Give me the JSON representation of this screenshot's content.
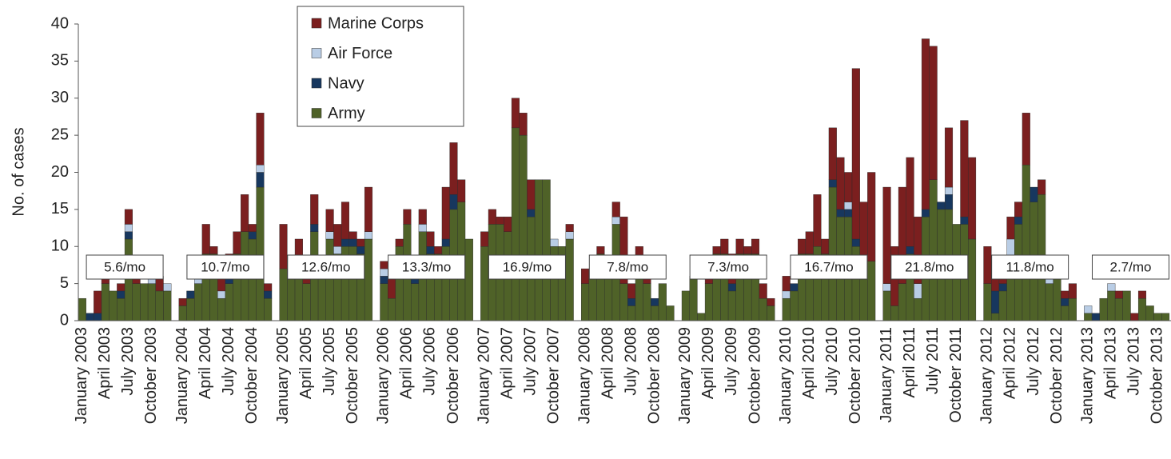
{
  "chart_data": {
    "type": "stacked-bar",
    "y_label": "No. of cases",
    "ylim": [
      0,
      40
    ],
    "yticks": [
      0,
      5,
      10,
      15,
      20,
      25,
      30,
      35,
      40
    ],
    "categories": [
      "January 2003",
      null,
      null,
      "April 2003",
      null,
      null,
      "July 2003",
      null,
      null,
      "October 2003",
      null,
      null,
      "January 2004",
      null,
      null,
      "April 2004",
      null,
      null,
      "July 2004",
      null,
      null,
      "October 2004",
      null,
      null,
      "January 2005",
      null,
      null,
      "April 2005",
      null,
      null,
      "July 2005",
      null,
      null,
      "October 2005",
      null,
      null,
      "January 2006",
      null,
      null,
      "April 2006",
      null,
      null,
      "July 2006",
      null,
      null,
      "October 2006",
      null,
      null,
      "January 2007",
      null,
      null,
      "April 2007",
      null,
      null,
      "July 2007",
      null,
      null,
      "October 2007",
      null,
      null,
      "January 2008",
      null,
      null,
      "April 2008",
      null,
      null,
      "July 2008",
      null,
      null,
      "October 2008",
      null,
      null,
      "January 2009",
      null,
      null,
      "April 2009",
      null,
      null,
      "July 2009",
      null,
      null,
      "October 2009",
      null,
      null,
      "January 2010",
      null,
      null,
      "April 2010",
      null,
      null,
      "July 2010",
      null,
      null,
      "October 2010",
      null,
      null,
      "January 2011",
      null,
      null,
      "April 2011",
      null,
      null,
      "July 2011",
      null,
      null,
      "October 2011",
      null,
      null,
      "January 2012",
      null,
      null,
      "April 2012",
      null,
      null,
      "July 2012",
      null,
      null,
      "October 2012",
      null,
      null,
      "January 2013",
      null,
      null,
      "April 2013",
      null,
      null,
      "July 2013",
      null,
      null,
      "October 2013",
      null,
      null
    ],
    "series": [
      {
        "name": "Army",
        "color": "#4f6228",
        "values": [
          3,
          0,
          0,
          5,
          4,
          3,
          11,
          5,
          5,
          5,
          4,
          4,
          2,
          3,
          5,
          9,
          9,
          3,
          5,
          9,
          12,
          11,
          18,
          3,
          7,
          7,
          6,
          5,
          12,
          7,
          11,
          9,
          10,
          10,
          9,
          11,
          5,
          3,
          10,
          13,
          5,
          12,
          9,
          9,
          10,
          15,
          16,
          11,
          10,
          13,
          13,
          12,
          26,
          25,
          14,
          19,
          19,
          10,
          10,
          11,
          5,
          6,
          9,
          6,
          13,
          5,
          2,
          6,
          5,
          2,
          5,
          2,
          4,
          6,
          1,
          5,
          9,
          9,
          4,
          9,
          9,
          9,
          3,
          2,
          3,
          4,
          9,
          9,
          10,
          9,
          18,
          14,
          14,
          10,
          8,
          8,
          4,
          2,
          5,
          9,
          3,
          14,
          19,
          15,
          15,
          13,
          13,
          11,
          5,
          1,
          4,
          8,
          13,
          21,
          16,
          17,
          5,
          6,
          2,
          3,
          1,
          0,
          3,
          4,
          3,
          4,
          0,
          3,
          2,
          1,
          1,
          0
        ]
      },
      {
        "name": "Navy",
        "color": "#17375e",
        "values": [
          0,
          1,
          1,
          0,
          0,
          1,
          1,
          0,
          0,
          0,
          0,
          0,
          0,
          1,
          0,
          0,
          0,
          0,
          1,
          0,
          0,
          1,
          2,
          1,
          0,
          0,
          0,
          0,
          1,
          0,
          0,
          0,
          1,
          1,
          1,
          0,
          1,
          0,
          0,
          0,
          1,
          0,
          1,
          0,
          1,
          2,
          0,
          0,
          0,
          0,
          0,
          0,
          0,
          0,
          1,
          0,
          0,
          0,
          0,
          0,
          0,
          0,
          0,
          0,
          0,
          0,
          1,
          0,
          0,
          1,
          0,
          0,
          0,
          0,
          0,
          0,
          0,
          0,
          1,
          0,
          0,
          0,
          0,
          0,
          0,
          1,
          0,
          0,
          0,
          0,
          1,
          1,
          1,
          1,
          0,
          0,
          0,
          0,
          0,
          1,
          0,
          1,
          0,
          1,
          2,
          0,
          1,
          0,
          0,
          3,
          1,
          0,
          1,
          0,
          2,
          0,
          0,
          0,
          1,
          0,
          0,
          1,
          0,
          0,
          0,
          0,
          0,
          0,
          0,
          0,
          0,
          0
        ]
      },
      {
        "name": "Air Force",
        "color": "#b9cde5",
        "values": [
          0,
          0,
          0,
          0,
          0,
          0,
          1,
          0,
          0,
          1,
          0,
          1,
          0,
          0,
          1,
          0,
          0,
          1,
          0,
          0,
          0,
          0,
          1,
          0,
          0,
          0,
          0,
          0,
          0,
          0,
          1,
          1,
          0,
          0,
          0,
          1,
          1,
          0,
          0,
          0,
          0,
          1,
          0,
          0,
          0,
          0,
          0,
          0,
          0,
          0,
          0,
          0,
          0,
          0,
          0,
          0,
          0,
          1,
          0,
          1,
          0,
          0,
          0,
          0,
          1,
          0,
          0,
          0,
          0,
          0,
          0,
          0,
          0,
          0,
          0,
          0,
          0,
          0,
          0,
          0,
          0,
          0,
          0,
          0,
          1,
          0,
          0,
          0,
          0,
          0,
          0,
          0,
          1,
          0,
          0,
          0,
          1,
          0,
          0,
          0,
          2,
          0,
          0,
          0,
          1,
          0,
          0,
          0,
          0,
          0,
          0,
          3,
          0,
          0,
          0,
          0,
          3,
          0,
          0,
          0,
          1,
          0,
          0,
          1,
          0,
          0,
          0,
          0,
          0,
          0,
          0,
          0
        ]
      },
      {
        "name": "Marine Corps",
        "color": "#7b1f1f",
        "values": [
          0,
          0,
          3,
          1,
          0,
          1,
          2,
          1,
          0,
          0,
          2,
          0,
          1,
          0,
          0,
          4,
          1,
          4,
          3,
          3,
          5,
          1,
          7,
          1,
          6,
          0,
          5,
          1,
          4,
          1,
          3,
          3,
          5,
          1,
          1,
          6,
          1,
          3,
          1,
          2,
          0,
          2,
          2,
          1,
          7,
          7,
          3,
          0,
          2,
          2,
          1,
          2,
          4,
          3,
          4,
          0,
          0,
          0,
          0,
          1,
          2,
          1,
          1,
          2,
          2,
          9,
          2,
          4,
          1,
          0,
          0,
          0,
          0,
          0,
          0,
          1,
          1,
          2,
          4,
          2,
          1,
          2,
          2,
          1,
          2,
          0,
          2,
          3,
          7,
          2,
          7,
          7,
          4,
          23,
          8,
          12,
          13,
          8,
          13,
          12,
          9,
          23,
          18,
          0,
          8,
          0,
          13,
          11,
          5,
          4,
          1,
          3,
          2,
          7,
          0,
          2,
          0,
          0,
          1,
          2,
          0,
          0,
          0,
          0,
          1,
          0,
          1,
          1,
          0,
          0,
          0,
          0
        ]
      }
    ],
    "annotations": [
      "5.6/mo",
      "10.7/mo",
      "12.6/mo",
      "13.3/mo",
      "16.9/mo",
      "7.8/mo",
      "7.3/mo",
      "16.7/mo",
      "21.8/mo",
      "11.8/mo",
      "2.7/mo"
    ]
  }
}
